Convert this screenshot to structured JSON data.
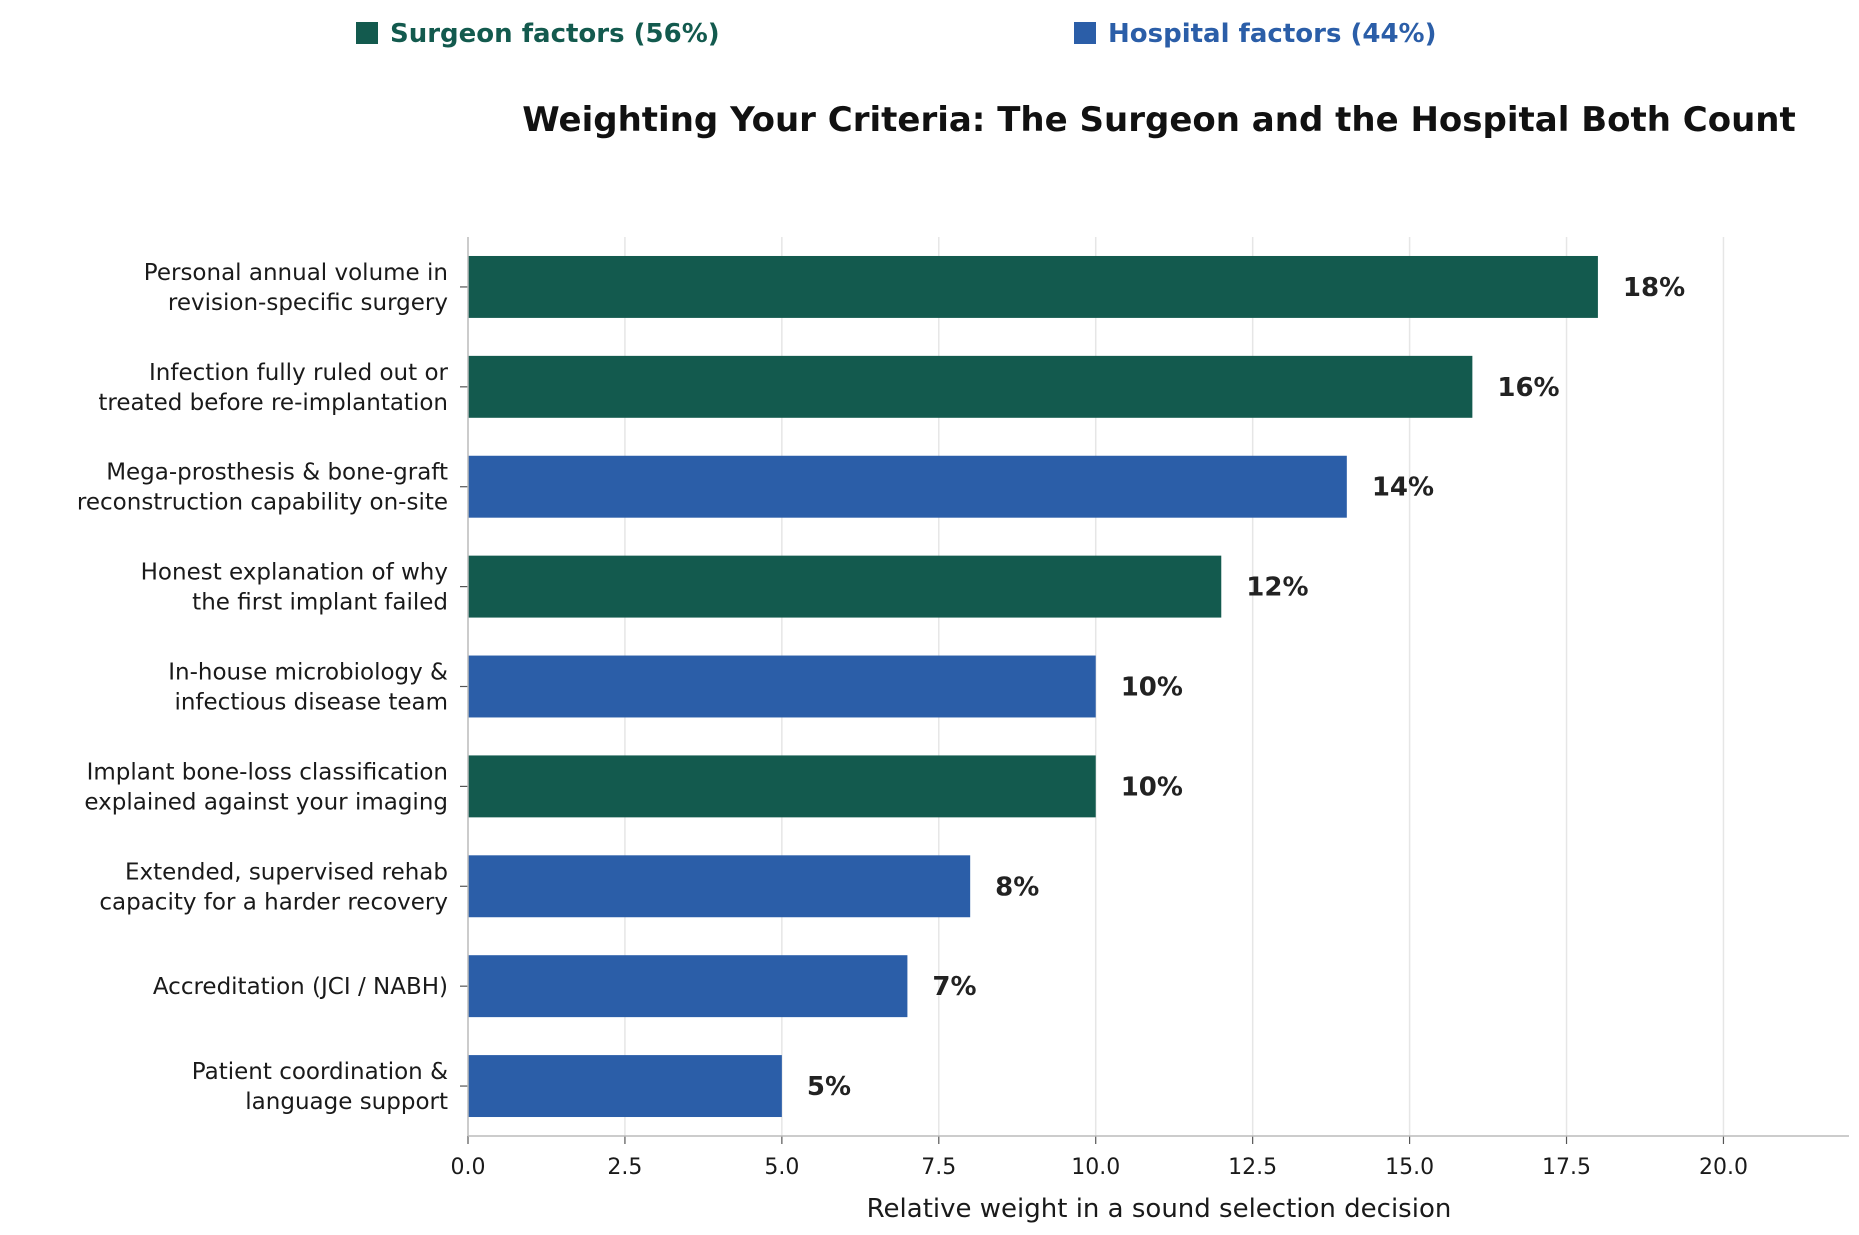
{
  "chart_data": {
    "type": "bar",
    "orientation": "horizontal",
    "title": "Weighting Your Criteria: The Surgeon and the Hospital Both Count",
    "xlabel": "Relative weight in a sound selection decision",
    "ylabel": "",
    "xlim": [
      0,
      22
    ],
    "xticks": [
      0,
      2.5,
      5,
      7.5,
      10,
      12.5,
      15,
      17.5,
      20
    ],
    "xtick_labels": [
      "0.0",
      "2.5",
      "5.0",
      "7.5",
      "10.0",
      "12.5",
      "15.0",
      "17.5",
      "20.0"
    ],
    "grid": "vertical",
    "legend_position": "top",
    "legend": [
      {
        "group": "surgeon",
        "label": "Surgeon factors (56%)",
        "color": "#135a4e"
      },
      {
        "group": "hospital",
        "label": "Hospital factors (44%)",
        "color": "#2b5ea8"
      }
    ],
    "categories": [
      [
        "Personal annual volume in",
        "revision-specific surgery"
      ],
      [
        "Infection fully ruled out or",
        "treated before re-implantation"
      ],
      [
        "Mega-prosthesis & bone-graft",
        "reconstruction capability on-site"
      ],
      [
        "Honest explanation of why",
        "the first implant failed"
      ],
      [
        "In-house microbiology &",
        "infectious disease team"
      ],
      [
        "Implant bone-loss classification",
        "explained against your imaging"
      ],
      [
        "Extended, supervised rehab",
        "capacity for a harder recovery"
      ],
      [
        "Accreditation (JCI / NABH)"
      ],
      [
        "Patient coordination &",
        "language support"
      ]
    ],
    "values": [
      18,
      16,
      14,
      12,
      10,
      10,
      8,
      7,
      5
    ],
    "groups": [
      "surgeon",
      "surgeon",
      "hospital",
      "surgeon",
      "hospital",
      "surgeon",
      "hospital",
      "hospital",
      "hospital"
    ],
    "value_labels": [
      "18%",
      "16%",
      "14%",
      "12%",
      "10%",
      "10%",
      "8%",
      "7%",
      "5%"
    ]
  }
}
